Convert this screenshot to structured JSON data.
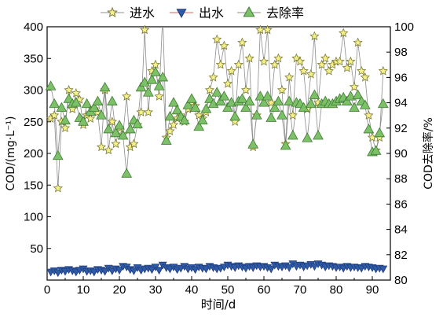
{
  "colors": {
    "influent_fill": "#f5f08a",
    "influent_stroke": "#7a7a3a",
    "effluent_fill": "#2f5aa8",
    "effluent_stroke": "#1e3d7a",
    "removal_fill": "#7cc168",
    "removal_stroke": "#3f7a33",
    "line": "#8c8c8c",
    "axis": "#000000"
  },
  "chart_data": {
    "type": "line",
    "xlabel": "时间/d",
    "ylabel_left": "COD/(mg·L⁻¹)",
    "ylabel_right": "COD去除率/%",
    "xlim": [
      0,
      95
    ],
    "ylim_left": [
      0,
      400
    ],
    "ylim_right": [
      80,
      100
    ],
    "x_ticks": [
      0,
      10,
      20,
      30,
      40,
      50,
      60,
      70,
      80,
      90
    ],
    "y_ticks_left": [
      50,
      100,
      150,
      200,
      250,
      300,
      350,
      400
    ],
    "y_ticks_right": [
      80,
      82,
      84,
      86,
      88,
      90,
      92,
      94,
      96,
      98,
      100
    ],
    "grid": false,
    "legend_position": "top",
    "series": [
      {
        "name": "进水",
        "axis": "left",
        "marker": "star",
        "x": [
          1,
          2,
          3,
          4,
          5,
          6,
          7,
          8,
          9,
          10,
          11,
          12,
          13,
          14,
          15,
          16,
          17,
          18,
          19,
          20,
          21,
          22,
          23,
          24,
          25,
          26,
          27,
          28,
          29,
          30,
          31,
          32,
          33,
          34,
          35,
          36,
          37,
          38,
          39,
          40,
          41,
          42,
          43,
          44,
          45,
          46,
          47,
          48,
          49,
          50,
          51,
          52,
          53,
          54,
          55,
          56,
          57,
          58,
          59,
          60,
          61,
          62,
          63,
          64,
          65,
          66,
          67,
          68,
          69,
          70,
          71,
          72,
          73,
          74,
          75,
          76,
          77,
          78,
          79,
          80,
          81,
          82,
          83,
          84,
          85,
          86,
          87,
          88,
          89,
          90,
          91,
          92,
          93
        ],
        "values": [
          255,
          260,
          145,
          250,
          240,
          300,
          270,
          295,
          285,
          245,
          260,
          255,
          270,
          265,
          210,
          300,
          205,
          250,
          215,
          240,
          230,
          290,
          210,
          215,
          245,
          265,
          395,
          265,
          330,
          340,
          290,
          420,
          225,
          235,
          245,
          255,
          260,
          250,
          270,
          280,
          275,
          260,
          255,
          265,
          300,
          320,
          380,
          340,
          370,
          310,
          330,
          250,
          340,
          375,
          300,
          350,
          210,
          260,
          395,
          345,
          395,
          280,
          340,
          350,
          300,
          215,
          320,
          260,
          350,
          345,
          330,
          270,
          325,
          385,
          280,
          340,
          350,
          330,
          340,
          345,
          345,
          390,
          335,
          345,
          305,
          375,
          330,
          320,
          260,
          225,
          205,
          225,
          330
        ],
        "visible_labels": []
      },
      {
        "name": "出水",
        "axis": "left",
        "marker": "triangle-down",
        "x": [
          1,
          2,
          3,
          4,
          5,
          6,
          7,
          8,
          9,
          10,
          11,
          12,
          13,
          14,
          15,
          16,
          17,
          18,
          19,
          20,
          21,
          22,
          23,
          24,
          25,
          26,
          27,
          28,
          29,
          30,
          31,
          32,
          33,
          34,
          35,
          36,
          37,
          38,
          39,
          40,
          41,
          42,
          43,
          44,
          45,
          46,
          47,
          48,
          49,
          50,
          51,
          52,
          53,
          54,
          55,
          56,
          57,
          58,
          59,
          60,
          61,
          62,
          63,
          64,
          65,
          66,
          67,
          68,
          69,
          70,
          71,
          72,
          73,
          74,
          75,
          76,
          77,
          78,
          79,
          80,
          81,
          82,
          83,
          84,
          85,
          86,
          87,
          88,
          89,
          90,
          91,
          92,
          93
        ],
        "values": [
          13,
          15,
          12,
          16,
          14,
          17,
          15,
          13,
          16,
          18,
          14,
          15,
          13,
          17,
          16,
          14,
          19,
          15,
          18,
          16,
          22,
          21,
          17,
          15,
          20,
          16,
          18,
          19,
          17,
          21,
          16,
          24,
          20,
          18,
          21,
          17,
          19,
          22,
          18,
          20,
          17,
          21,
          19,
          18,
          22,
          20,
          18,
          19,
          21,
          24,
          22,
          20,
          23,
          21,
          19,
          22,
          20,
          23,
          21,
          22,
          20,
          18,
          24,
          22,
          21,
          23,
          20,
          26,
          22,
          24,
          21,
          23,
          25,
          22,
          26,
          24,
          21,
          23,
          22,
          20,
          21,
          19,
          22,
          20,
          21,
          20,
          19,
          22,
          21,
          20,
          18,
          19,
          18
        ],
        "visible_labels": []
      },
      {
        "name": "去除率",
        "axis": "right",
        "marker": "triangle-up",
        "x": [
          1,
          2,
          3,
          4,
          5,
          6,
          7,
          8,
          9,
          10,
          11,
          12,
          13,
          14,
          15,
          16,
          17,
          18,
          19,
          20,
          21,
          22,
          23,
          24,
          25,
          26,
          27,
          28,
          29,
          30,
          31,
          32,
          33,
          34,
          35,
          36,
          37,
          38,
          39,
          40,
          41,
          42,
          43,
          44,
          45,
          46,
          47,
          48,
          49,
          50,
          51,
          52,
          53,
          54,
          55,
          56,
          57,
          58,
          59,
          60,
          61,
          62,
          63,
          64,
          65,
          66,
          67,
          68,
          69,
          70,
          71,
          72,
          73,
          74,
          75,
          76,
          77,
          78,
          79,
          80,
          81,
          82,
          83,
          84,
          85,
          86,
          87,
          88,
          89,
          90,
          91,
          92,
          93
        ],
        "values": [
          95.3,
          93.9,
          89.8,
          93.6,
          92.6,
          94.3,
          93.9,
          94.0,
          92.8,
          92.5,
          93.9,
          93.3,
          93.6,
          94.1,
          93.0,
          95.2,
          91.9,
          94.1,
          91.6,
          92.2,
          91.4,
          88.4,
          91.9,
          92.6,
          92.3,
          95.2,
          95.6,
          94.8,
          95.8,
          96.4,
          95.3,
          96.0,
          91.0,
          92.9,
          94.0,
          93.4,
          92.9,
          92.6,
          93.8,
          94.3,
          93.6,
          92.1,
          92.6,
          93.5,
          94.3,
          93.9,
          94.8,
          94.1,
          94.5,
          93.6,
          94.0,
          92.9,
          94.1,
          94.3,
          93.6,
          94.1,
          90.7,
          93.0,
          94.5,
          94.0,
          94.5,
          92.8,
          93.6,
          94.1,
          93.0,
          90.6,
          94.1,
          91.4,
          94.0,
          93.9,
          93.6,
          91.2,
          93.9,
          94.6,
          91.4,
          93.9,
          94.1,
          93.9,
          93.9,
          94.1,
          94.3,
          94.4,
          94.1,
          94.5,
          93.6,
          94.6,
          94.1,
          93.8,
          91.9,
          90.1,
          90.2,
          91.6,
          93.9
        ],
        "visible_labels": []
      }
    ]
  }
}
